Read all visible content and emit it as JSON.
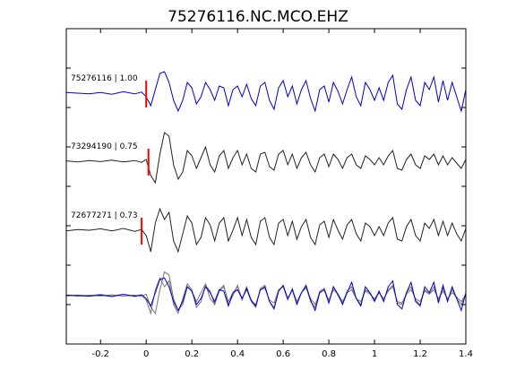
{
  "chart_data": {
    "type": "line",
    "title": "75276116.NC.MCO.EHZ",
    "xlabel": "",
    "ylabel": "",
    "xlim": [
      -0.35,
      1.4
    ],
    "x_ticks": [
      -0.2,
      0,
      0.2,
      0.4,
      0.6,
      0.8,
      1,
      1.2,
      1.4
    ],
    "x_tick_labels": [
      "-0.2",
      "0",
      "0.2",
      "0.4",
      "0.6",
      "0.8",
      "1",
      "1.2",
      "1.4"
    ],
    "grid": false,
    "series": [
      {
        "name": "75276116 | 1.00",
        "color": "#0000cc",
        "pick_time": 0.0,
        "points": [
          [
            -0.35,
            0.02
          ],
          [
            -0.3,
            0.0
          ],
          [
            -0.25,
            -0.02
          ],
          [
            -0.2,
            0.02
          ],
          [
            -0.15,
            -0.03
          ],
          [
            -0.1,
            0.04
          ],
          [
            -0.05,
            -0.02
          ],
          [
            -0.02,
            0.03
          ],
          [
            0.0,
            -0.1
          ],
          [
            0.02,
            -0.35
          ],
          [
            0.04,
            0.1
          ],
          [
            0.06,
            0.55
          ],
          [
            0.08,
            0.6
          ],
          [
            0.1,
            0.3
          ],
          [
            0.12,
            -0.2
          ],
          [
            0.14,
            -0.5
          ],
          [
            0.16,
            -0.2
          ],
          [
            0.18,
            0.3
          ],
          [
            0.2,
            0.15
          ],
          [
            0.22,
            -0.3
          ],
          [
            0.24,
            -0.1
          ],
          [
            0.26,
            0.3
          ],
          [
            0.28,
            0.1
          ],
          [
            0.3,
            -0.2
          ],
          [
            0.32,
            0.2
          ],
          [
            0.34,
            0.15
          ],
          [
            0.36,
            -0.35
          ],
          [
            0.38,
            0.1
          ],
          [
            0.4,
            0.2
          ],
          [
            0.42,
            -0.1
          ],
          [
            0.44,
            0.25
          ],
          [
            0.46,
            -0.15
          ],
          [
            0.48,
            -0.35
          ],
          [
            0.5,
            0.2
          ],
          [
            0.52,
            0.3
          ],
          [
            0.54,
            -0.2
          ],
          [
            0.56,
            -0.45
          ],
          [
            0.58,
            0.15
          ],
          [
            0.6,
            0.35
          ],
          [
            0.62,
            -0.1
          ],
          [
            0.64,
            0.2
          ],
          [
            0.66,
            -0.3
          ],
          [
            0.68,
            0.1
          ],
          [
            0.7,
            0.35
          ],
          [
            0.72,
            -0.15
          ],
          [
            0.74,
            -0.5
          ],
          [
            0.76,
            0.1
          ],
          [
            0.78,
            0.2
          ],
          [
            0.8,
            -0.25
          ],
          [
            0.82,
            0.3
          ],
          [
            0.84,
            0.05
          ],
          [
            0.86,
            -0.3
          ],
          [
            0.88,
            0.1
          ],
          [
            0.9,
            0.45
          ],
          [
            0.92,
            -0.1
          ],
          [
            0.94,
            -0.35
          ],
          [
            0.96,
            0.3
          ],
          [
            0.98,
            0.1
          ],
          [
            1.0,
            -0.2
          ],
          [
            1.02,
            0.15
          ],
          [
            1.04,
            -0.2
          ],
          [
            1.06,
            0.3
          ],
          [
            1.08,
            0.5
          ],
          [
            1.1,
            -0.3
          ],
          [
            1.12,
            -0.45
          ],
          [
            1.14,
            0.1
          ],
          [
            1.16,
            0.45
          ],
          [
            1.18,
            -0.2
          ],
          [
            1.2,
            -0.35
          ],
          [
            1.22,
            0.3
          ],
          [
            1.24,
            0.1
          ],
          [
            1.26,
            0.45
          ],
          [
            1.28,
            -0.25
          ],
          [
            1.3,
            0.35
          ],
          [
            1.32,
            -0.2
          ],
          [
            1.34,
            0.3
          ],
          [
            1.36,
            -0.1
          ],
          [
            1.38,
            -0.5
          ],
          [
            1.4,
            0.1
          ]
        ]
      },
      {
        "name": "73294190 | 0.75",
        "color": "#222222",
        "pick_time": 0.01,
        "points": [
          [
            -0.35,
            0.01
          ],
          [
            -0.3,
            -0.02
          ],
          [
            -0.25,
            0.02
          ],
          [
            -0.2,
            -0.01
          ],
          [
            -0.15,
            0.03
          ],
          [
            -0.1,
            -0.02
          ],
          [
            -0.05,
            0.02
          ],
          [
            -0.02,
            -0.03
          ],
          [
            0.0,
            0.05
          ],
          [
            0.02,
            -0.4
          ],
          [
            0.04,
            -0.6
          ],
          [
            0.06,
            0.2
          ],
          [
            0.08,
            0.8
          ],
          [
            0.1,
            0.7
          ],
          [
            0.12,
            -0.1
          ],
          [
            0.14,
            -0.5
          ],
          [
            0.16,
            -0.3
          ],
          [
            0.18,
            0.3
          ],
          [
            0.2,
            0.15
          ],
          [
            0.22,
            -0.2
          ],
          [
            0.24,
            0.1
          ],
          [
            0.26,
            0.4
          ],
          [
            0.28,
            -0.1
          ],
          [
            0.3,
            -0.3
          ],
          [
            0.32,
            0.15
          ],
          [
            0.34,
            0.3
          ],
          [
            0.36,
            -0.2
          ],
          [
            0.38,
            0.1
          ],
          [
            0.4,
            0.3
          ],
          [
            0.42,
            -0.1
          ],
          [
            0.44,
            0.2
          ],
          [
            0.46,
            -0.2
          ],
          [
            0.48,
            -0.3
          ],
          [
            0.5,
            0.2
          ],
          [
            0.52,
            0.25
          ],
          [
            0.54,
            -0.15
          ],
          [
            0.56,
            -0.25
          ],
          [
            0.58,
            0.2
          ],
          [
            0.6,
            0.3
          ],
          [
            0.62,
            -0.1
          ],
          [
            0.64,
            0.2
          ],
          [
            0.66,
            -0.2
          ],
          [
            0.68,
            0.1
          ],
          [
            0.7,
            0.25
          ],
          [
            0.72,
            -0.1
          ],
          [
            0.74,
            -0.3
          ],
          [
            0.76,
            0.1
          ],
          [
            0.78,
            0.2
          ],
          [
            0.8,
            -0.15
          ],
          [
            0.82,
            0.2
          ],
          [
            0.84,
            0.05
          ],
          [
            0.86,
            -0.2
          ],
          [
            0.88,
            0.1
          ],
          [
            0.9,
            0.2
          ],
          [
            0.92,
            -0.1
          ],
          [
            0.94,
            -0.2
          ],
          [
            0.96,
            0.15
          ],
          [
            0.98,
            0.05
          ],
          [
            1.0,
            -0.1
          ],
          [
            1.02,
            0.1
          ],
          [
            1.04,
            -0.1
          ],
          [
            1.06,
            0.15
          ],
          [
            1.08,
            0.3
          ],
          [
            1.1,
            -0.2
          ],
          [
            1.12,
            -0.25
          ],
          [
            1.14,
            0.05
          ],
          [
            1.16,
            0.2
          ],
          [
            1.18,
            -0.1
          ],
          [
            1.2,
            -0.2
          ],
          [
            1.22,
            0.15
          ],
          [
            1.24,
            0.05
          ],
          [
            1.26,
            0.2
          ],
          [
            1.28,
            -0.1
          ],
          [
            1.3,
            0.15
          ],
          [
            1.32,
            -0.1
          ],
          [
            1.34,
            0.1
          ],
          [
            1.36,
            -0.05
          ],
          [
            1.38,
            -0.2
          ],
          [
            1.4,
            0.05
          ]
        ]
      },
      {
        "name": "72677271 | 0.73",
        "color": "#222222",
        "pick_time": -0.02,
        "points": [
          [
            -0.35,
            -0.02
          ],
          [
            -0.3,
            0.02
          ],
          [
            -0.25,
            0.0
          ],
          [
            -0.2,
            0.04
          ],
          [
            -0.15,
            -0.02
          ],
          [
            -0.1,
            0.05
          ],
          [
            -0.05,
            -0.03
          ],
          [
            -0.02,
            0.02
          ],
          [
            0.0,
            -0.15
          ],
          [
            0.02,
            -0.6
          ],
          [
            0.04,
            0.2
          ],
          [
            0.06,
            0.6
          ],
          [
            0.08,
            0.3
          ],
          [
            0.1,
            0.5
          ],
          [
            0.12,
            -0.3
          ],
          [
            0.14,
            -0.6
          ],
          [
            0.16,
            -0.1
          ],
          [
            0.18,
            0.4
          ],
          [
            0.2,
            0.2
          ],
          [
            0.22,
            -0.4
          ],
          [
            0.24,
            -0.2
          ],
          [
            0.26,
            0.35
          ],
          [
            0.28,
            0.15
          ],
          [
            0.3,
            -0.3
          ],
          [
            0.32,
            0.2
          ],
          [
            0.34,
            0.35
          ],
          [
            0.36,
            -0.3
          ],
          [
            0.38,
            0.0
          ],
          [
            0.4,
            0.35
          ],
          [
            0.42,
            -0.15
          ],
          [
            0.44,
            0.3
          ],
          [
            0.46,
            -0.2
          ],
          [
            0.48,
            -0.4
          ],
          [
            0.5,
            0.25
          ],
          [
            0.52,
            0.35
          ],
          [
            0.54,
            -0.2
          ],
          [
            0.56,
            -0.4
          ],
          [
            0.58,
            0.2
          ],
          [
            0.6,
            0.3
          ],
          [
            0.62,
            -0.15
          ],
          [
            0.64,
            0.25
          ],
          [
            0.66,
            -0.25
          ],
          [
            0.68,
            0.1
          ],
          [
            0.7,
            0.3
          ],
          [
            0.72,
            -0.2
          ],
          [
            0.74,
            -0.4
          ],
          [
            0.76,
            0.15
          ],
          [
            0.78,
            0.25
          ],
          [
            0.8,
            -0.2
          ],
          [
            0.82,
            0.3
          ],
          [
            0.84,
            0.0
          ],
          [
            0.86,
            -0.25
          ],
          [
            0.88,
            0.15
          ],
          [
            0.9,
            0.3
          ],
          [
            0.92,
            -0.1
          ],
          [
            0.94,
            -0.3
          ],
          [
            0.96,
            0.2
          ],
          [
            0.98,
            0.1
          ],
          [
            1.0,
            -0.15
          ],
          [
            1.02,
            0.1
          ],
          [
            1.04,
            -0.15
          ],
          [
            1.06,
            0.2
          ],
          [
            1.08,
            0.35
          ],
          [
            1.1,
            -0.25
          ],
          [
            1.12,
            -0.3
          ],
          [
            1.14,
            0.1
          ],
          [
            1.16,
            0.3
          ],
          [
            1.18,
            -0.15
          ],
          [
            1.2,
            -0.3
          ],
          [
            1.22,
            0.2
          ],
          [
            1.24,
            0.05
          ],
          [
            1.26,
            0.3
          ],
          [
            1.28,
            -0.15
          ],
          [
            1.3,
            0.25
          ],
          [
            1.32,
            -0.15
          ],
          [
            1.34,
            0.2
          ],
          [
            1.36,
            -0.1
          ],
          [
            1.38,
            -0.3
          ],
          [
            1.4,
            0.05
          ]
        ]
      }
    ]
  }
}
